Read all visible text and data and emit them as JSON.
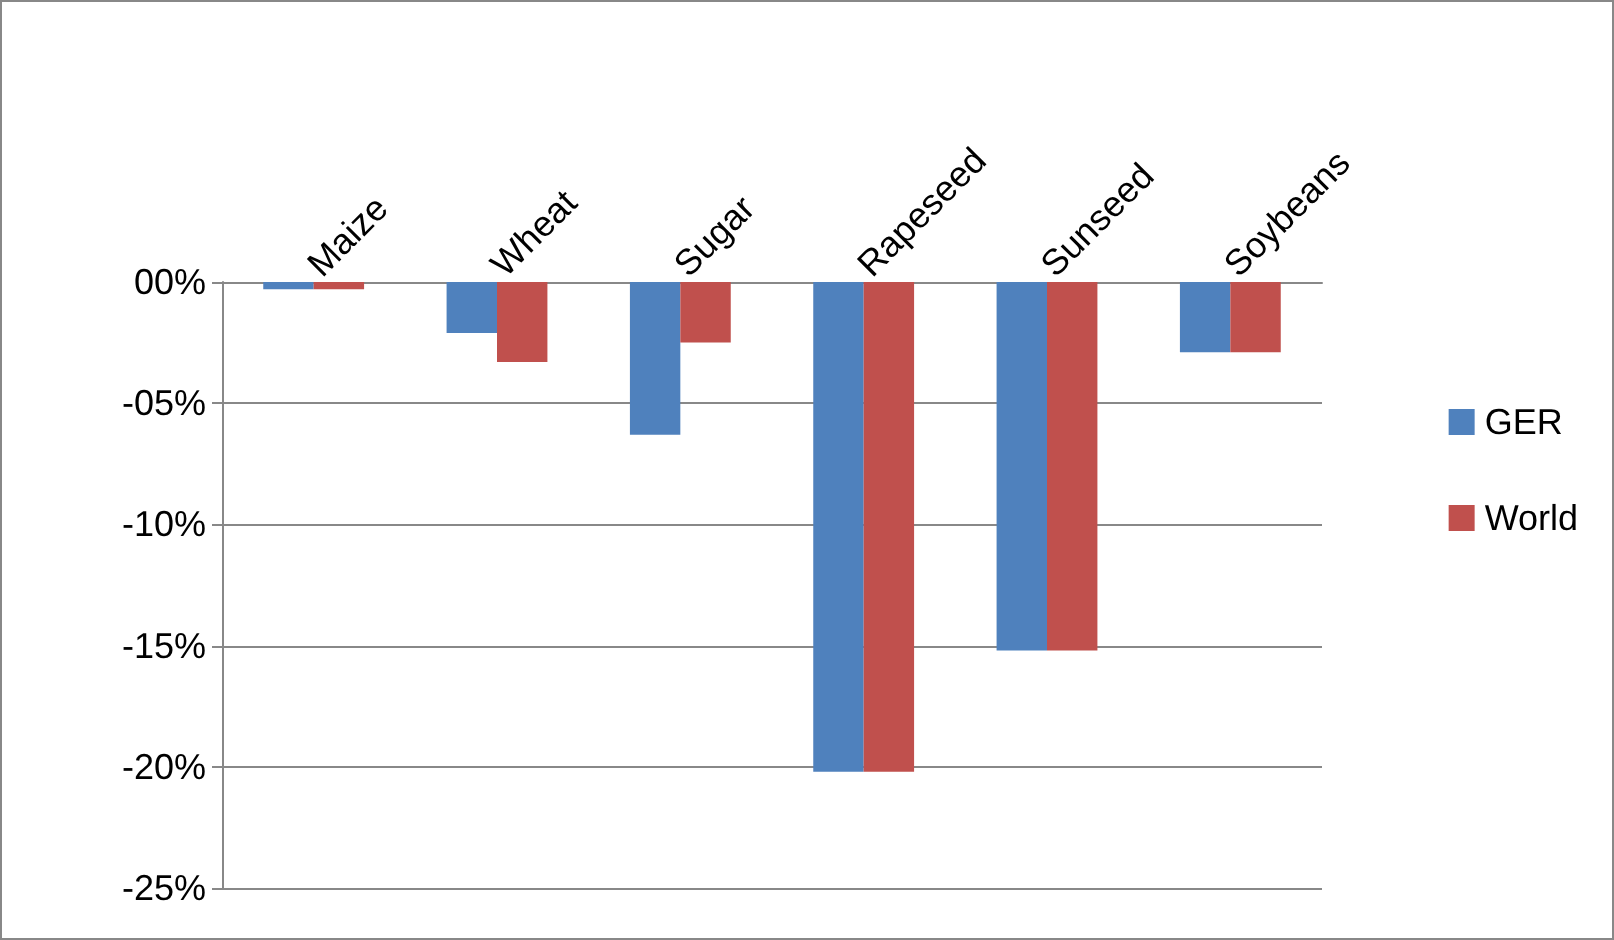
{
  "chart_data": {
    "type": "bar",
    "categories": [
      "Maize",
      "Wheat",
      "Sugar",
      "Rapeseed",
      "Sunseed",
      "Soybeans"
    ],
    "series": [
      {
        "name": "GER",
        "color": "#4f81bd",
        "values": [
          -0.3,
          -2.1,
          -6.3,
          -20.2,
          -15.2,
          -2.9
        ]
      },
      {
        "name": "World",
        "color": "#c0504d",
        "values": [
          -0.3,
          -3.3,
          -2.5,
          -20.2,
          -15.2,
          -2.9
        ]
      }
    ],
    "ylim": [
      -25,
      0
    ],
    "yticks": [
      {
        "value": 0,
        "label": "00%"
      },
      {
        "value": -5,
        "label": "-05%"
      },
      {
        "value": -10,
        "label": "-10%"
      },
      {
        "value": -15,
        "label": "-15%"
      },
      {
        "value": -20,
        "label": "-20%"
      },
      {
        "value": -25,
        "label": "-25%"
      }
    ],
    "grid": "y",
    "legend": "right"
  }
}
